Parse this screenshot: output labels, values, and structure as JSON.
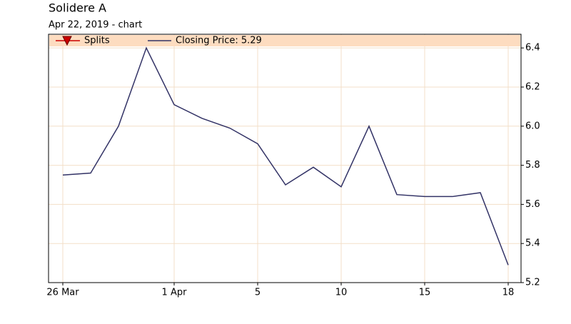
{
  "chart_data": {
    "type": "line",
    "title": "Solidere A",
    "subtitle": "Apr 22, 2019 -  chart",
    "markers_legend": "Splits",
    "categories": [
      "26 Mar",
      null,
      null,
      null,
      "1 Apr",
      null,
      null,
      "5",
      null,
      null,
      "10",
      null,
      null,
      "15",
      null,
      null,
      "18"
    ],
    "series": [
      {
        "name": "Closing Price: 5.29",
        "color": "#333366",
        "values": [
          5.75,
          5.76,
          6.0,
          6.4,
          6.11,
          6.04,
          5.99,
          5.91,
          5.7,
          5.79,
          5.69,
          6.0,
          5.65,
          5.64,
          5.64,
          5.66,
          5.29
        ]
      }
    ],
    "ylim": [
      5.2,
      6.47
    ],
    "yticks": [
      5.2,
      5.4,
      5.6,
      5.8,
      {
        "value": 6,
        "label": "6.0"
      },
      6.2,
      6.4
    ],
    "grid": true
  }
}
